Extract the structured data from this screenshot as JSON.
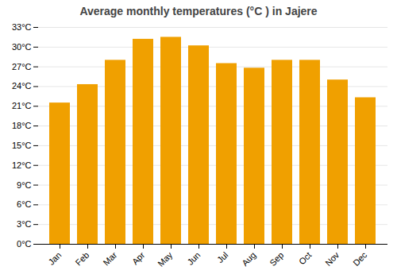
{
  "chart_data": {
    "type": "bar",
    "title": "Average monthly temperatures (°C ) in Jajere",
    "categories": [
      "Jan",
      "Feb",
      "Mar",
      "Apr",
      "May",
      "Jun",
      "Jul",
      "Aug",
      "Sep",
      "Oct",
      "Nov",
      "Dec"
    ],
    "values": [
      21.5,
      24.3,
      28.0,
      31.2,
      31.5,
      30.2,
      27.5,
      26.8,
      28.0,
      28.0,
      25.0,
      22.3
    ],
    "color": "#F0A000",
    "ylim": [
      0,
      33
    ],
    "yticks": [
      {
        "value": 0,
        "label": "0°C"
      },
      {
        "value": 3,
        "label": "3°C"
      },
      {
        "value": 6,
        "label": "6°C"
      },
      {
        "value": 9,
        "label": "9°C"
      },
      {
        "value": 12,
        "label": "12°C"
      },
      {
        "value": 15,
        "label": "15°C"
      },
      {
        "value": 18,
        "label": "18°C"
      },
      {
        "value": 21,
        "label": "21°C"
      },
      {
        "value": 24,
        "label": "24°C"
      },
      {
        "value": 27,
        "label": "27°C"
      },
      {
        "value": 30,
        "label": "30°C"
      },
      {
        "value": 33,
        "label": "33°C"
      }
    ],
    "grid": true
  }
}
